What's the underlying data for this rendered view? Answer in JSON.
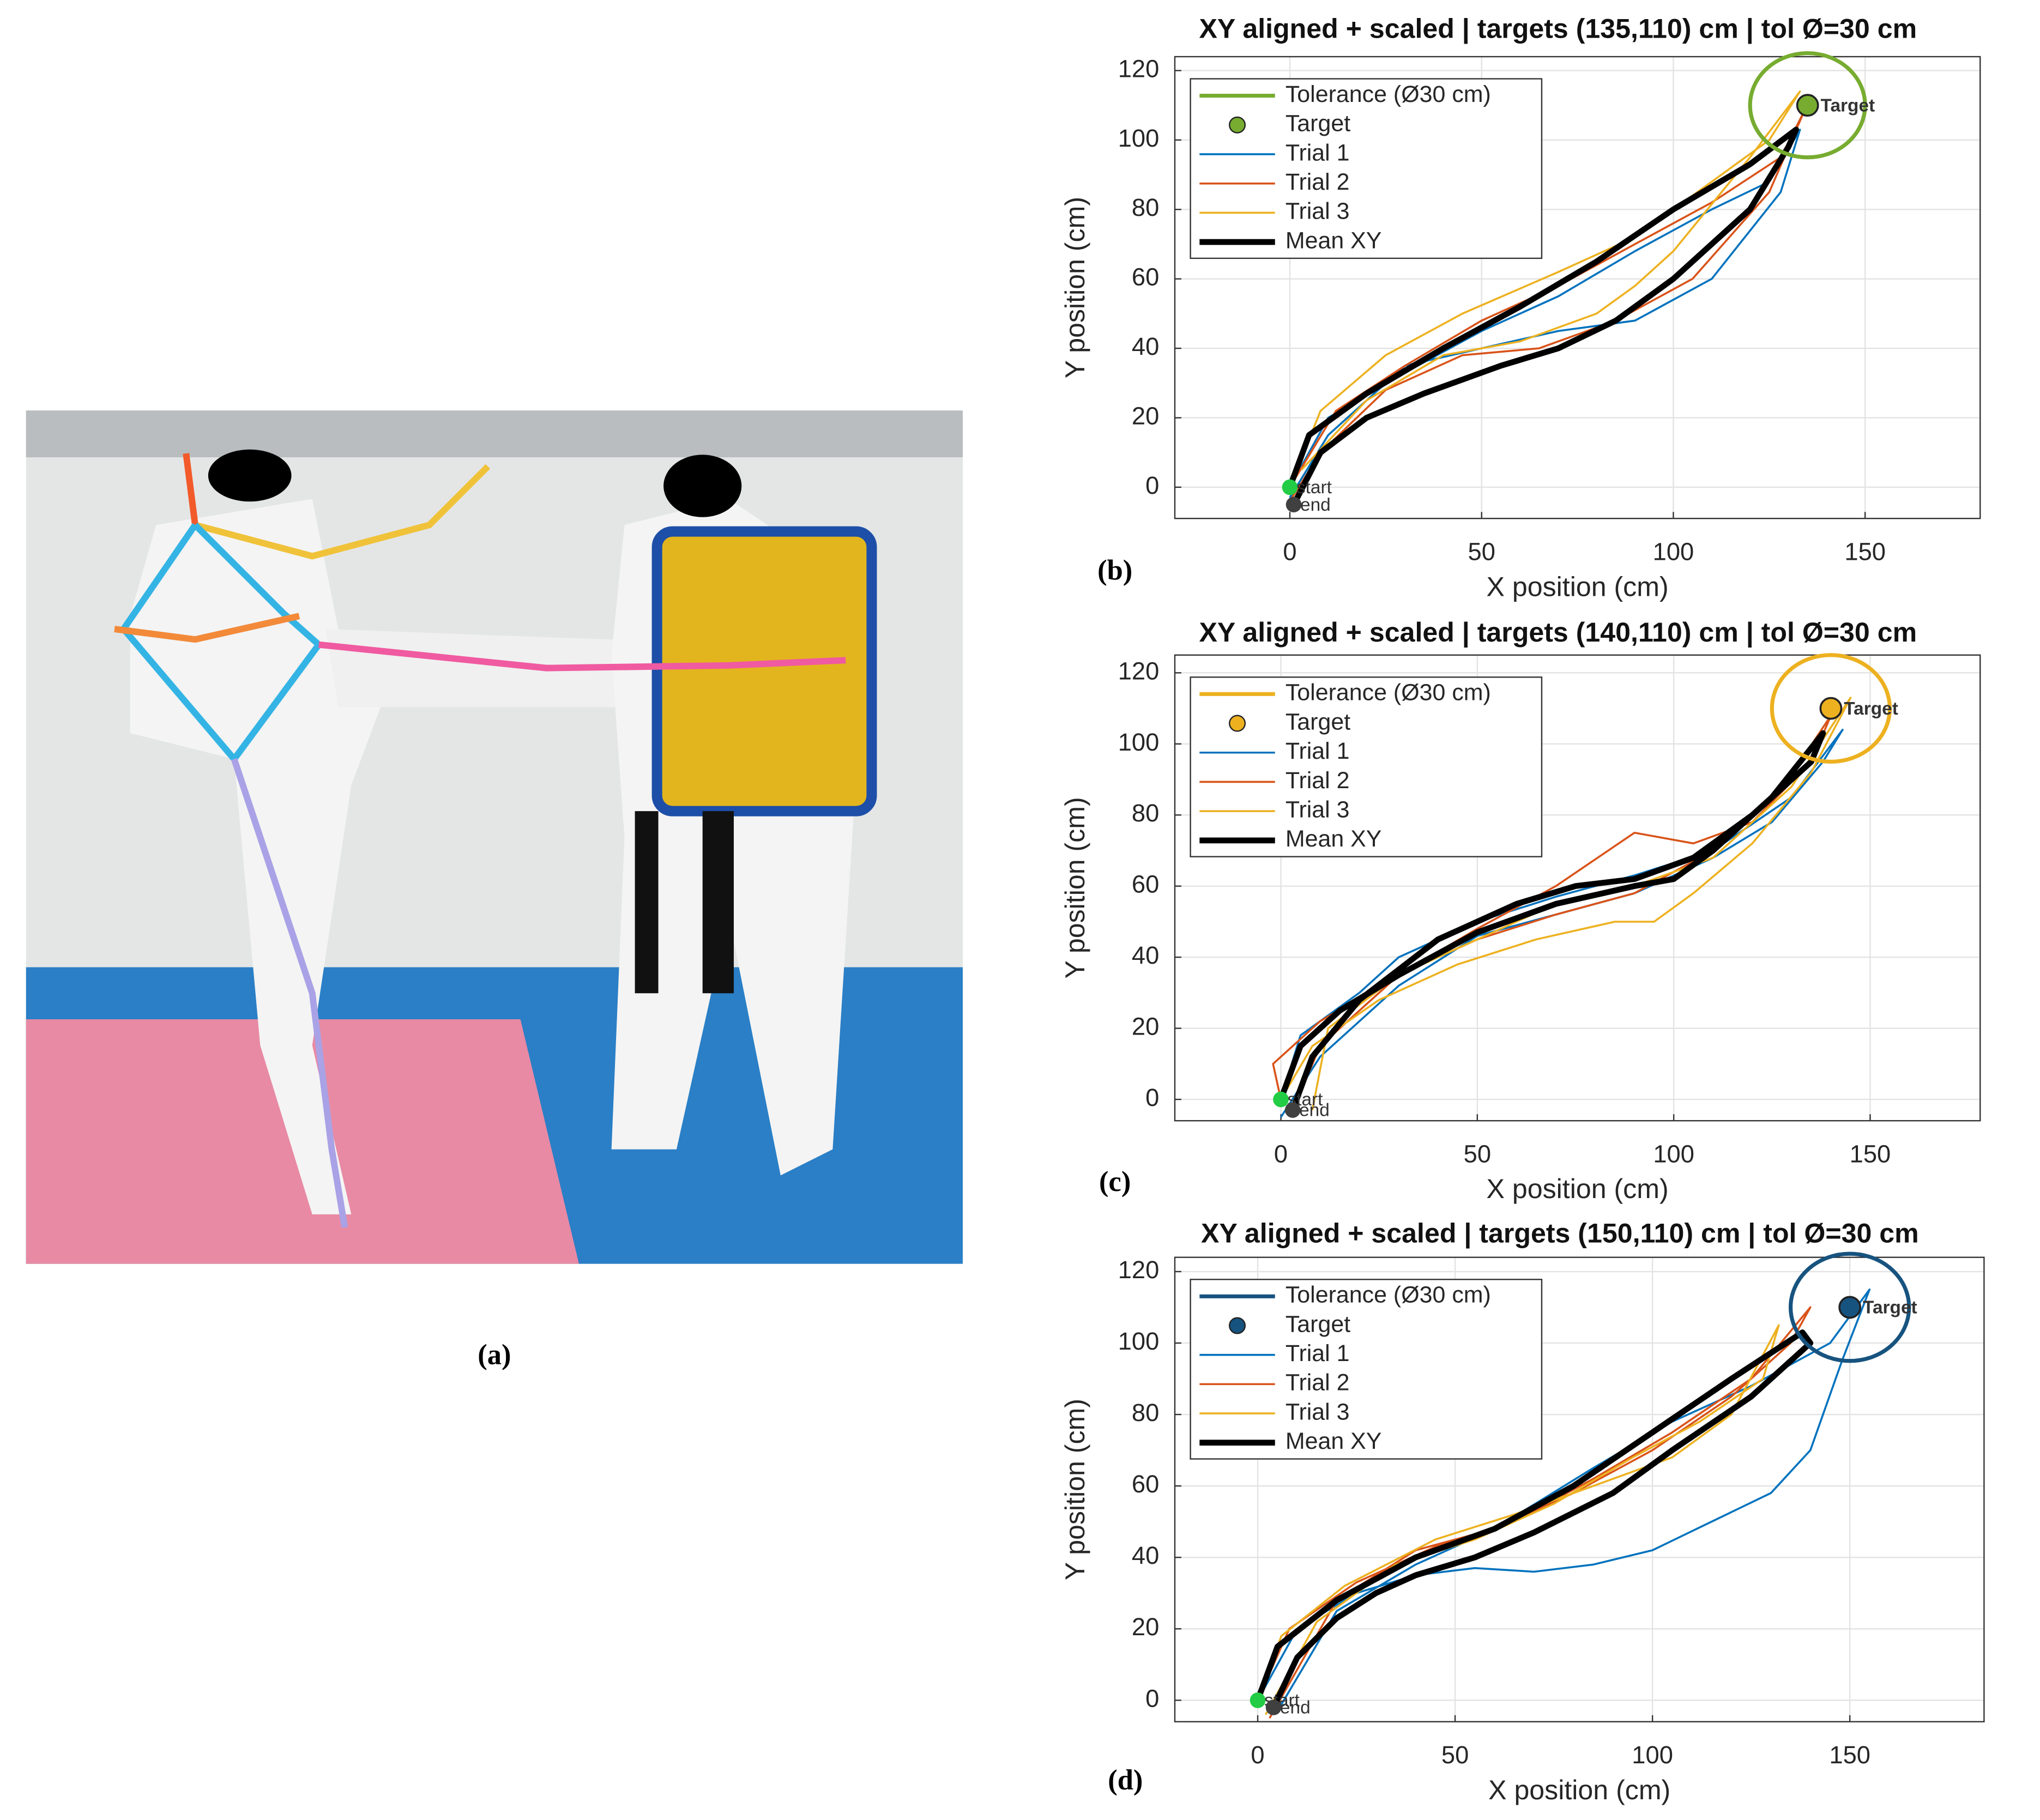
{
  "photo": {
    "label": "(a)"
  },
  "chart_data": [
    {
      "type": "line",
      "panel": "(b)",
      "title": "XY aligned + scaled | targets (135,110) cm | tol Ø=30 cm",
      "xlabel": "X position (cm)",
      "ylabel": "Y position (cm)",
      "xlim": [
        -30,
        180
      ],
      "ylim": [
        -9,
        124
      ],
      "xticks": [
        0,
        50,
        100,
        150
      ],
      "yticks": [
        0,
        20,
        40,
        60,
        80,
        100,
        120
      ],
      "grid": true,
      "legend": "upper left",
      "tolerance": {
        "name": "Tolerance (Ø30 cm)",
        "color": "#77ac30",
        "center": [
          135,
          110
        ],
        "diameter": 30
      },
      "target": {
        "name": "Target",
        "x": 135,
        "y": 110,
        "color": "#77ac30"
      },
      "start": {
        "label": "start",
        "x": 0,
        "y": 0,
        "color": "#22cc44"
      },
      "end": {
        "label": "end",
        "x": 1,
        "y": -5,
        "color": "#404040"
      },
      "series": [
        {
          "name": "Trial 1",
          "color": "#0072bd",
          "x": [
            0,
            10,
            30,
            50,
            70,
            90,
            110,
            125,
            133,
            128,
            110,
            90,
            70,
            50,
            30,
            10,
            0
          ],
          "values": [
            0,
            20,
            33,
            45,
            55,
            68,
            80,
            88,
            103,
            85,
            60,
            48,
            45,
            40,
            35,
            15,
            -3
          ]
        },
        {
          "name": "Trial 2",
          "color": "#d95319",
          "x": [
            0,
            12,
            30,
            50,
            70,
            90,
            110,
            128,
            134,
            125,
            105,
            85,
            65,
            45,
            25,
            8,
            0
          ],
          "values": [
            0,
            22,
            35,
            48,
            58,
            70,
            82,
            95,
            108,
            85,
            60,
            48,
            40,
            38,
            28,
            10,
            -4
          ]
        },
        {
          "name": "Trial 3",
          "color": "#edb120",
          "x": [
            0,
            8,
            25,
            45,
            70,
            90,
            110,
            125,
            133,
            120,
            100,
            90,
            80,
            60,
            40,
            20,
            3
          ],
          "values": [
            0,
            22,
            38,
            50,
            62,
            72,
            88,
            100,
            114,
            95,
            68,
            58,
            50,
            42,
            38,
            25,
            5
          ]
        },
        {
          "name": "Mean XY",
          "color": "#000000",
          "x": [
            0,
            5,
            20,
            40,
            60,
            80,
            100,
            120,
            132,
            130,
            120,
            100,
            85,
            70,
            55,
            35,
            20,
            8,
            1
          ],
          "values": [
            0,
            15,
            27,
            40,
            52,
            65,
            80,
            93,
            103,
            98,
            80,
            60,
            48,
            40,
            35,
            27,
            20,
            10,
            -5
          ]
        }
      ]
    },
    {
      "type": "line",
      "panel": "(c)",
      "title": "XY aligned + scaled | targets (140,110) cm | tol Ø=30 cm",
      "xlabel": "X position (cm)",
      "ylabel": "Y position (cm)",
      "xlim": [
        -27,
        178
      ],
      "ylim": [
        -6,
        125
      ],
      "xticks": [
        0,
        50,
        100,
        150
      ],
      "yticks": [
        0,
        20,
        40,
        60,
        80,
        100,
        120
      ],
      "grid": true,
      "legend": "upper left",
      "tolerance": {
        "name": "Tolerance (Ø30 cm)",
        "color": "#edb120",
        "center": [
          140,
          110
        ],
        "diameter": 30
      },
      "target": {
        "name": "Target",
        "x": 140,
        "y": 110,
        "color": "#edb120"
      },
      "start": {
        "label": "start",
        "x": 0,
        "y": 0,
        "color": "#22cc44"
      },
      "end": {
        "label": "end",
        "x": 3,
        "y": -3,
        "color": "#404040"
      },
      "series": [
        {
          "name": "Trial 1",
          "color": "#0072bd",
          "x": [
            0,
            5,
            20,
            30,
            50,
            70,
            90,
            110,
            130,
            143,
            138,
            125,
            110,
            90,
            70,
            50,
            30,
            10,
            0
          ],
          "values": [
            0,
            18,
            30,
            40,
            50,
            57,
            63,
            70,
            85,
            104,
            95,
            78,
            68,
            58,
            52,
            46,
            32,
            12,
            -5
          ]
        },
        {
          "name": "Trial 2",
          "color": "#d95319",
          "x": [
            0,
            -2,
            10,
            30,
            50,
            70,
            90,
            105,
            120,
            135,
            140,
            128,
            110,
            90,
            70,
            50,
            30,
            10,
            3
          ],
          "values": [
            0,
            10,
            22,
            35,
            48,
            60,
            75,
            72,
            78,
            95,
            108,
            88,
            70,
            58,
            52,
            45,
            35,
            15,
            -3
          ]
        },
        {
          "name": "Trial 3",
          "color": "#edb120",
          "x": [
            0,
            8,
            25,
            45,
            65,
            85,
            95,
            105,
            120,
            135,
            145,
            130,
            110,
            90,
            70,
            50,
            30,
            12,
            8
          ],
          "values": [
            0,
            15,
            28,
            38,
            45,
            50,
            50,
            58,
            72,
            92,
            113,
            88,
            68,
            60,
            55,
            45,
            35,
            20,
            -3
          ]
        },
        {
          "name": "Mean XY",
          "color": "#000000",
          "x": [
            0,
            5,
            15,
            30,
            50,
            70,
            90,
            100,
            110,
            125,
            138,
            135,
            120,
            105,
            90,
            75,
            60,
            40,
            20,
            8,
            3
          ],
          "values": [
            0,
            15,
            25,
            35,
            47,
            55,
            60,
            62,
            70,
            85,
            103,
            95,
            80,
            68,
            62,
            60,
            55,
            45,
            28,
            12,
            -3
          ]
        }
      ]
    },
    {
      "type": "line",
      "panel": "(d)",
      "title": "XY aligned + scaled | targets (150,110) cm | tol Ø=30 cm",
      "xlabel": "X position (cm)",
      "ylabel": "Y position (cm)",
      "xlim": [
        -21,
        184
      ],
      "ylim": [
        -6,
        124
      ],
      "xticks": [
        0,
        50,
        100,
        150
      ],
      "yticks": [
        0,
        20,
        40,
        60,
        80,
        100,
        120
      ],
      "grid": true,
      "legend": "upper left",
      "tolerance": {
        "name": "Tolerance (Ø30 cm)",
        "color": "#17537f",
        "center": [
          150,
          110
        ],
        "diameter": 30
      },
      "target": {
        "name": "Target",
        "x": 150,
        "y": 110,
        "color": "#17537f"
      },
      "start": {
        "label": "start",
        "x": 0,
        "y": 0,
        "color": "#22cc44"
      },
      "end": {
        "label": "end",
        "x": 4,
        "y": -2,
        "color": "#404040"
      },
      "series": [
        {
          "name": "Trial 1",
          "color": "#0072bd",
          "x": [
            0,
            10,
            25,
            40,
            55,
            70,
            85,
            100,
            115,
            130,
            140,
            148,
            155,
            145,
            125,
            105,
            85,
            60,
            40,
            20,
            5
          ],
          "values": [
            0,
            20,
            30,
            35,
            37,
            36,
            38,
            42,
            50,
            58,
            70,
            95,
            115,
            100,
            88,
            78,
            65,
            48,
            38,
            25,
            -3
          ]
        },
        {
          "name": "Trial 2",
          "color": "#d95319",
          "x": [
            0,
            8,
            25,
            45,
            65,
            85,
            105,
            125,
            140,
            135,
            120,
            100,
            80,
            60,
            40,
            20,
            3
          ],
          "values": [
            0,
            20,
            33,
            43,
            50,
            62,
            75,
            90,
            110,
            100,
            85,
            70,
            58,
            48,
            42,
            28,
            -5
          ]
        },
        {
          "name": "Trial 3",
          "color": "#edb120",
          "x": [
            0,
            6,
            22,
            45,
            65,
            85,
            105,
            120,
            132,
            128,
            112,
            95,
            75,
            55,
            35,
            15,
            2
          ],
          "values": [
            0,
            18,
            32,
            45,
            52,
            60,
            68,
            80,
            105,
            90,
            78,
            68,
            55,
            45,
            38,
            22,
            -4
          ]
        },
        {
          "name": "Mean XY",
          "color": "#000000",
          "x": [
            0,
            5,
            20,
            40,
            60,
            80,
            100,
            120,
            138,
            140,
            125,
            105,
            90,
            70,
            55,
            40,
            30,
            20,
            10,
            4
          ],
          "values": [
            0,
            15,
            28,
            40,
            48,
            60,
            75,
            90,
            103,
            100,
            85,
            70,
            58,
            47,
            40,
            35,
            30,
            23,
            12,
            -2
          ]
        }
      ]
    }
  ]
}
